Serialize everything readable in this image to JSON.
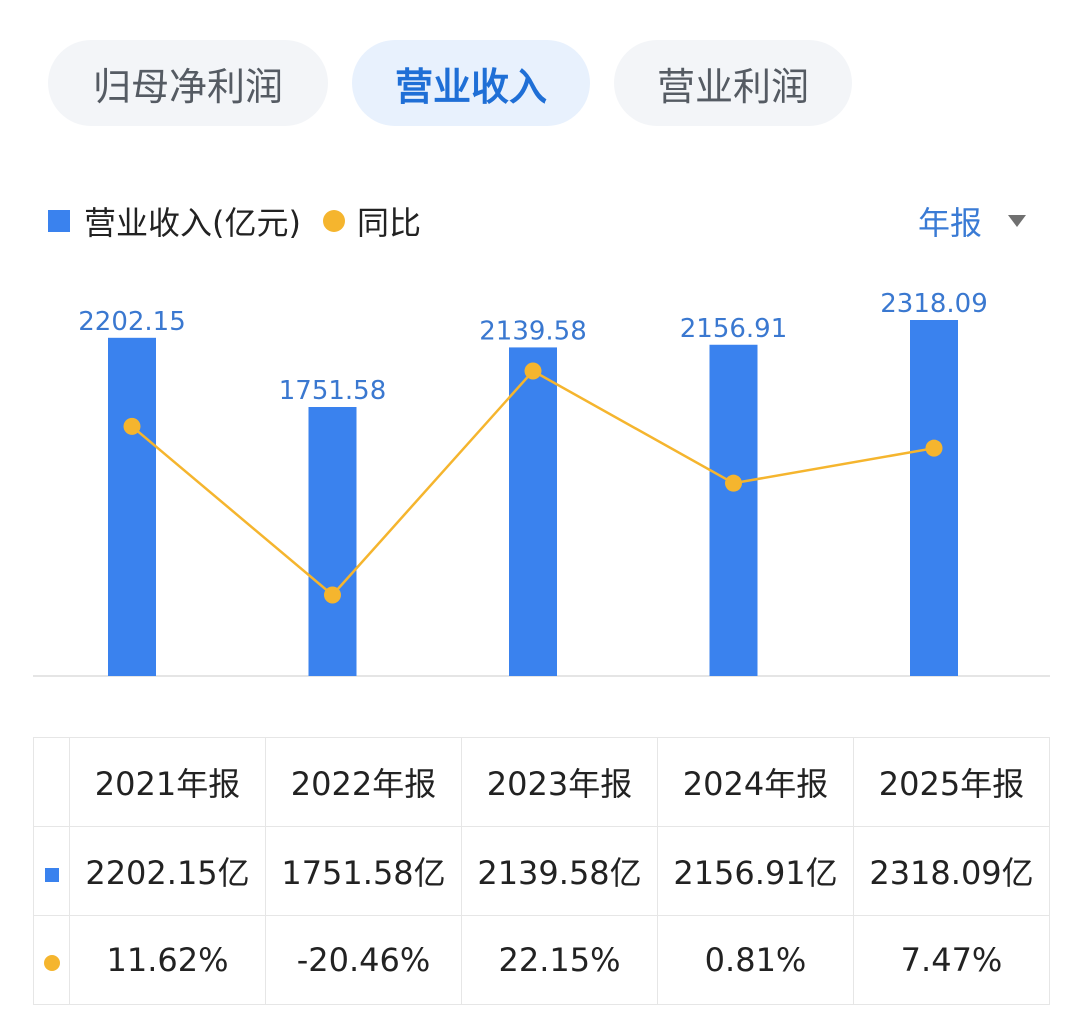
{
  "tabs": [
    {
      "label": "归母净利润",
      "active": false
    },
    {
      "label": "营业收入",
      "active": true
    },
    {
      "label": "营业利润",
      "active": false
    }
  ],
  "legend": {
    "bar_label": "营业收入(亿元)",
    "line_label": "同比"
  },
  "period_selector": {
    "label": "年报"
  },
  "colors": {
    "bar": "#3a82ee",
    "line": "#f5b52e",
    "positive": "#d24a4a",
    "negative": "#2f9a6a",
    "accent": "#1f6fd6"
  },
  "chart_data": {
    "type": "bar",
    "categories": [
      "2021年报",
      "2022年报",
      "2023年报",
      "2024年报",
      "2025年报"
    ],
    "series": [
      {
        "name": "营业收入(亿元)",
        "type": "bar",
        "values": [
          2202.15,
          1751.58,
          2139.58,
          2156.91,
          2318.09
        ]
      },
      {
        "name": "同比",
        "type": "line",
        "values": [
          11.62,
          -20.46,
          22.15,
          0.81,
          7.47
        ]
      }
    ],
    "bar_labels": [
      "2202.15",
      "1751.58",
      "2139.58",
      "2156.91",
      "2318.09"
    ],
    "ylim_bar": [
      0,
      2318.09
    ],
    "ylim_line": [
      -20.46,
      22.15
    ],
    "grid": false
  },
  "table": {
    "headers": [
      "2021年报",
      "2022年报",
      "2023年报",
      "2024年报",
      "2025年报"
    ],
    "revenue": [
      "2202.15亿",
      "1751.58亿",
      "2139.58亿",
      "2156.91亿",
      "2318.09亿"
    ],
    "yoy": [
      "11.62%",
      "-20.46%",
      "22.15%",
      "0.81%",
      "7.47%"
    ]
  }
}
